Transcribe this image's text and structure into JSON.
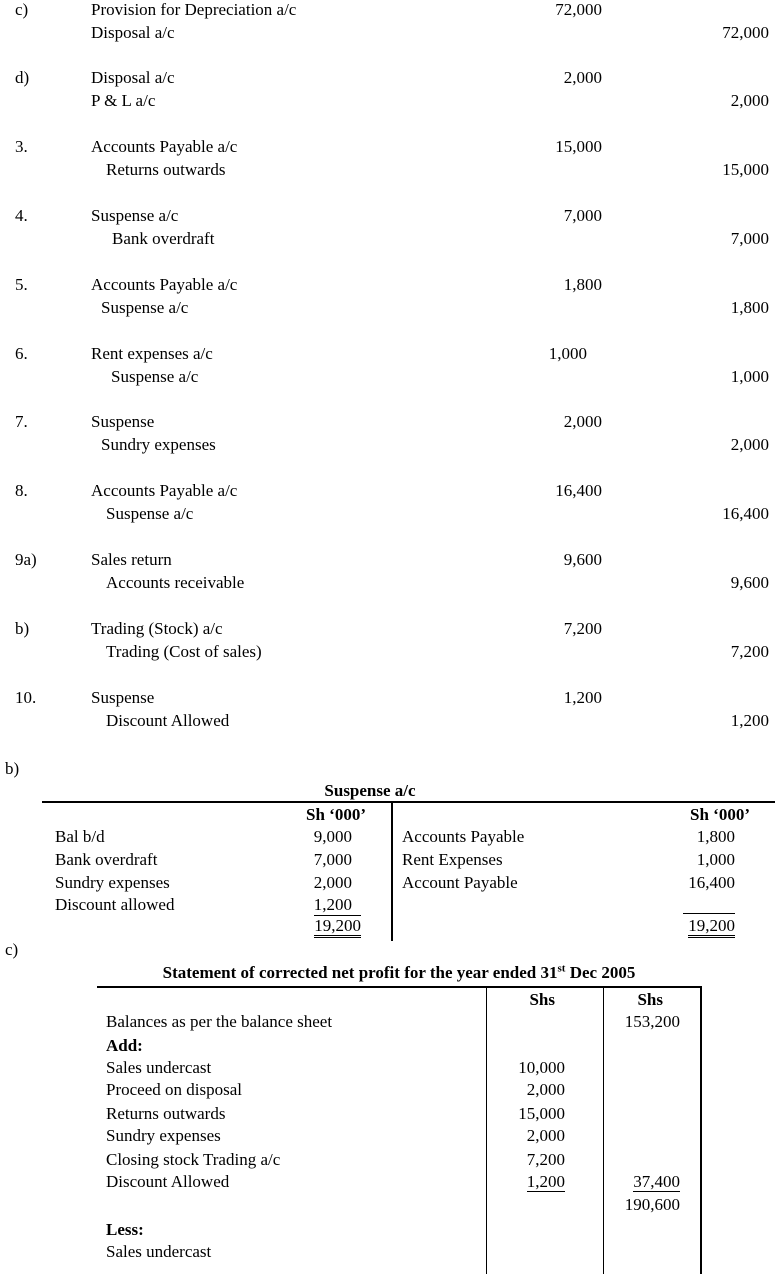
{
  "journal": [
    {
      "ref": "c)",
      "debit_account": "Provision for Depreciation a/c",
      "credit_account": "Disposal a/c",
      "debit": "72,000",
      "credit": "72,000"
    },
    {
      "ref": "d)",
      "debit_account": "Disposal a/c",
      "credit_account": "P & L a/c",
      "debit": "2,000",
      "credit": "2,000"
    },
    {
      "ref": "3.",
      "debit_account": "Accounts Payable a/c",
      "credit_account": "Returns outwards",
      "debit": "15,000",
      "credit": "15,000"
    },
    {
      "ref": "4.",
      "debit_account": "Suspense a/c",
      "credit_account": "Bank overdraft",
      "debit": "7,000",
      "credit": "7,000"
    },
    {
      "ref": "5.",
      "debit_account": "Accounts Payable a/c",
      "credit_account": "Suspense a/c",
      "debit": "1,800",
      "credit": "1,800"
    },
    {
      "ref": "6.",
      "debit_account": "Rent expenses a/c",
      "credit_account": "Suspense a/c",
      "debit": "1,000",
      "credit": "1,000"
    },
    {
      "ref": "7.",
      "debit_account": "Suspense",
      "credit_account": "Sundry expenses",
      "debit": "2,000",
      "credit": "2,000"
    },
    {
      "ref": "8.",
      "debit_account": "Accounts Payable a/c",
      "credit_account": "Suspense a/c",
      "debit": "16,400",
      "credit": "16,400"
    },
    {
      "ref": "9a)",
      "debit_account": "Sales return",
      "credit_account": "Accounts receivable",
      "debit": "9,600",
      "credit": "9,600"
    },
    {
      "ref": "b)",
      "debit_account": "Trading (Stock) a/c",
      "credit_account": "Trading (Cost of sales)",
      "debit": "7,200",
      "credit": "7,200"
    },
    {
      "ref": "10.",
      "debit_account": "Suspense",
      "credit_account": "Discount Allowed",
      "debit": "1,200",
      "credit": "1,200"
    }
  ],
  "suspense": {
    "section": "b)",
    "title": "Suspense a/c",
    "col_header": "Sh ‘000’",
    "debits": [
      {
        "label": "Bal b/d",
        "amount": "9,000"
      },
      {
        "label": "Bank overdraft",
        "amount": "7,000"
      },
      {
        "label": "Sundry expenses",
        "amount": "2,000"
      },
      {
        "label": "Discount allowed",
        "amount": "1,200"
      }
    ],
    "credits": [
      {
        "label": "Accounts Payable",
        "amount": "1,800"
      },
      {
        "label": "Rent Expenses",
        "amount": "1,000"
      },
      {
        "label": "Account Payable",
        "amount": "16,400"
      }
    ],
    "total_debit": "19,200",
    "total_credit": "19,200"
  },
  "statement": {
    "section": "c)",
    "title_pre": "Statement of corrected net profit for the year ended 31",
    "title_sup": "st",
    "title_post": " Dec 2005",
    "col1": "Shs",
    "col2": "Shs",
    "balance_label": "Balances as per the balance sheet",
    "balance": "153,200",
    "add_label": "Add:",
    "adds": [
      {
        "label": "Sales undercast",
        "amount": "10,000"
      },
      {
        "label": "Proceed on disposal",
        "amount": "2,000"
      },
      {
        "label": "Returns outwards",
        "amount": "15,000"
      },
      {
        "label": "Sundry expenses",
        "amount": "2,000"
      },
      {
        "label": "Closing stock Trading a/c",
        "amount": "7,200"
      },
      {
        "label": "Discount Allowed",
        "amount": "1,200"
      }
    ],
    "add_total": "37,400",
    "subtotal": "190,600",
    "less_label": "Less:",
    "less": [
      {
        "label": "Sales undercast"
      }
    ]
  }
}
